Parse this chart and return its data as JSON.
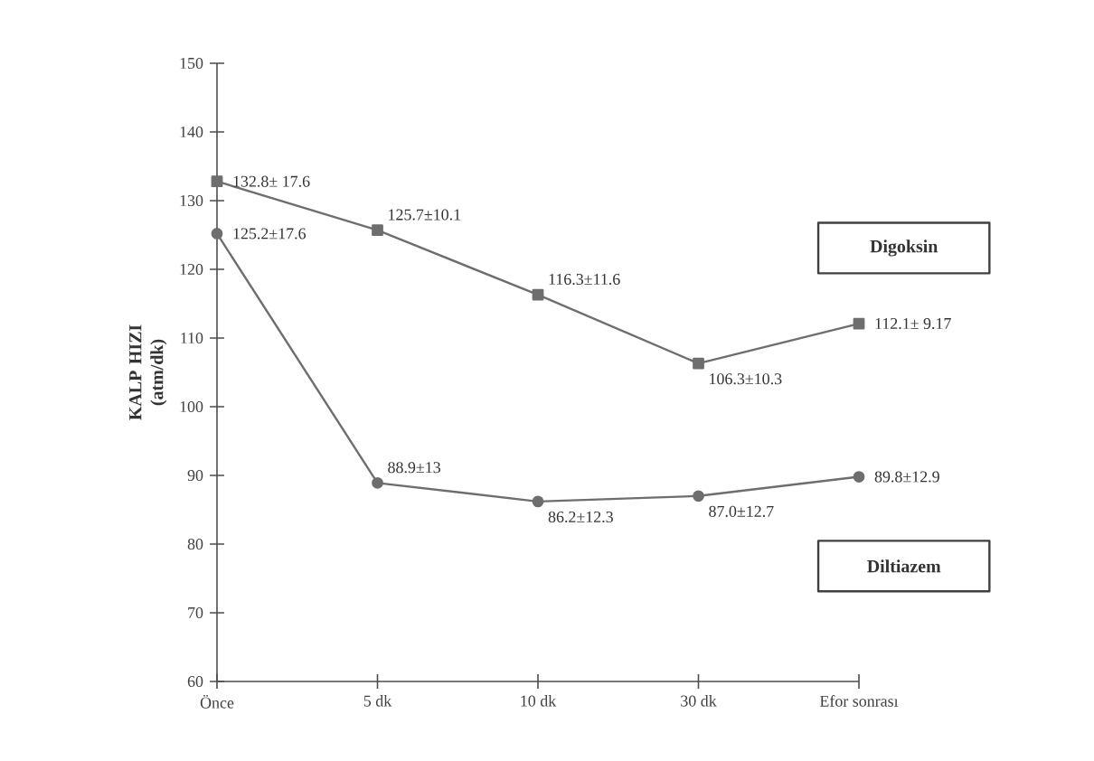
{
  "chart_data": {
    "type": "line",
    "ylabel": "KALP HIZI (atm/dk)",
    "categories": [
      "Önce",
      "5 dk",
      "10 dk",
      "30 dk",
      "Efor sonrası"
    ],
    "series": [
      {
        "name": "Digoksin",
        "color": "#6e6e6e",
        "marker": "square",
        "values": [
          132.8,
          125.7,
          116.3,
          106.3,
          112.1
        ],
        "value_labels": [
          "132.8± 17.6",
          "125.7±10.1",
          "116.3±11.6",
          "106.3±10.3",
          "112.1± 9.17"
        ]
      },
      {
        "name": "Diltiazem",
        "color": "#6e6e6e",
        "marker": "circle",
        "values": [
          125.2,
          88.9,
          86.2,
          87.0,
          89.8
        ],
        "value_labels": [
          "125.2±17.6",
          "88.9±13",
          "86.2±12.3",
          "87.0±12.7",
          "89.8±12.9"
        ]
      }
    ],
    "ylim": [
      60,
      150
    ],
    "yticks": [
      60,
      70,
      80,
      90,
      100,
      110,
      120,
      130,
      140,
      150
    ],
    "grid": false,
    "legend": false,
    "line_style": "solid"
  }
}
